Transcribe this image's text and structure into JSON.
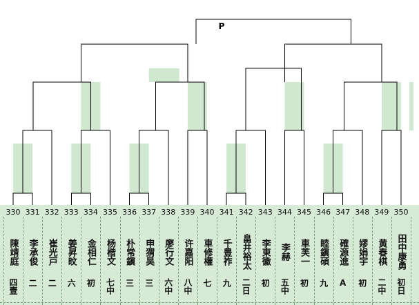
{
  "title": "P",
  "players": [
    {
      "id": "330",
      "name": "陳靖庭",
      "rank": "四壹"
    },
    {
      "id": "331",
      "name": "李承俊",
      "rank": "二"
    },
    {
      "id": "332",
      "name": "崔光戸",
      "rank": "二"
    },
    {
      "id": "333",
      "name": "姜昇旼",
      "rank": "六"
    },
    {
      "id": "334",
      "name": "金相仁",
      "rank": "初"
    },
    {
      "id": "335",
      "name": "杨楷文",
      "rank": "七中"
    },
    {
      "id": "336",
      "name": "朴常鎭",
      "rank": "三"
    },
    {
      "id": "337",
      "name": "申猬昊",
      "rank": "三"
    },
    {
      "id": "338",
      "name": "廖行文",
      "rank": "六中"
    },
    {
      "id": "339",
      "name": "许嘉阳",
      "rank": "八中"
    },
    {
      "id": "340",
      "name": "車修權",
      "rank": "七"
    },
    {
      "id": "341",
      "name": "千豊祚",
      "rank": "九"
    },
    {
      "id": "342",
      "name": "畠井裕太",
      "rank": "二日"
    },
    {
      "id": "343",
      "name": "李東徽",
      "rank": "初"
    },
    {
      "id": "344",
      "name": "李赫",
      "rank": "五中"
    },
    {
      "id": "345",
      "name": "車芙一",
      "rank": "初"
    },
    {
      "id": "346",
      "name": "睦鎭碩",
      "rank": "九"
    },
    {
      "id": "347",
      "name": "確源進",
      "rank": "A"
    },
    {
      "id": "348",
      "name": "嫪娟宇",
      "rank": "初"
    },
    {
      "id": "349",
      "name": "黄春棋",
      "rank": "二中"
    },
    {
      "id": "350",
      "name": "田中康勇",
      "rank": "初日"
    }
  ],
  "colors": {
    "panel": "#d6ead6",
    "highlight": "#cfe8cf",
    "line": "#000000"
  }
}
